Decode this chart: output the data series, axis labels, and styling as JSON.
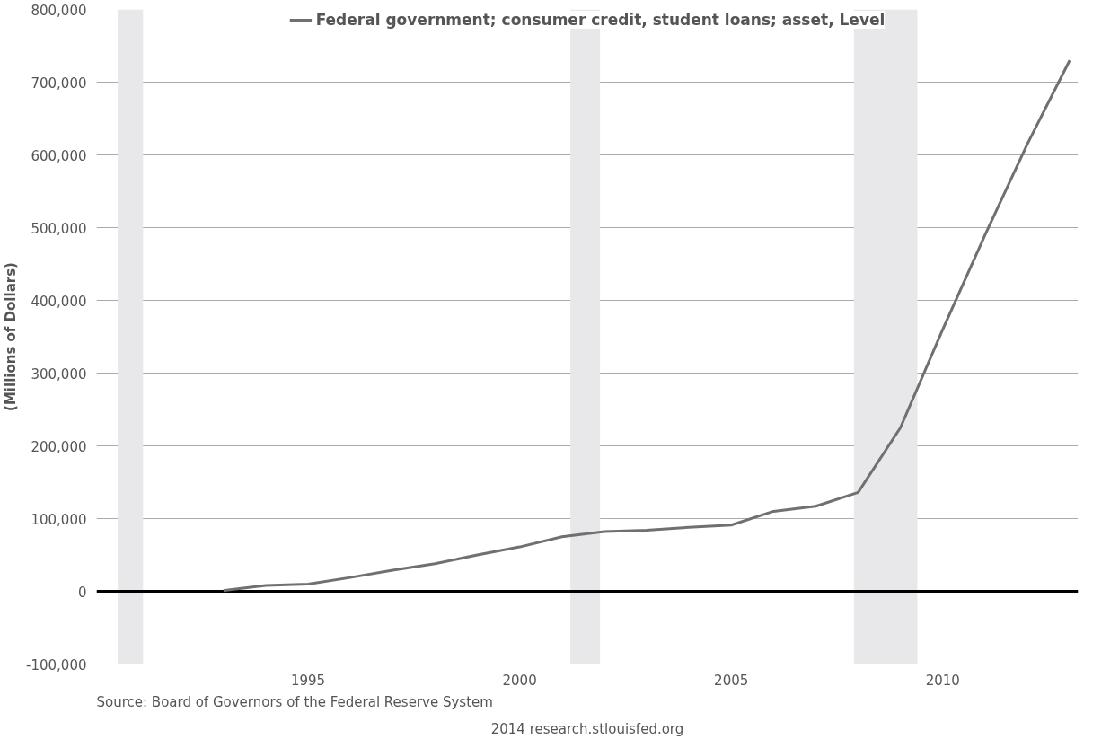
{
  "chart_data": {
    "type": "line",
    "ylabel": "(Millions of Dollars)",
    "x": [
      1993,
      1994,
      1995,
      1996,
      1997,
      1998,
      1999,
      2000,
      2001,
      2002,
      2003,
      2004,
      2005,
      2006,
      2007,
      2008,
      2009,
      2010,
      2011,
      2012,
      2013
    ],
    "series": [
      {
        "name": "Federal government; consumer credit, student loans; asset, Level",
        "color": "#707070",
        "values": [
          1000,
          8000,
          10000,
          19000,
          29000,
          38000,
          50000,
          61000,
          75000,
          82000,
          84000,
          88000,
          91000,
          110000,
          117000,
          136000,
          225000,
          360000,
          490000,
          615000,
          730000
        ]
      }
    ],
    "xlim": [
      1990,
      2013.2
    ],
    "xticks": [
      1995,
      2000,
      2005,
      2010
    ],
    "ylim": [
      -100000,
      800000
    ],
    "yticks": [
      {
        "value": -100000,
        "label": "-100,000"
      },
      {
        "value": 0,
        "label": "0"
      },
      {
        "value": 100000,
        "label": "100,000"
      },
      {
        "value": 200000,
        "label": "200,000"
      },
      {
        "value": 300000,
        "label": "300,000"
      },
      {
        "value": 400000,
        "label": "400,000"
      },
      {
        "value": 500000,
        "label": "500,000"
      },
      {
        "value": 600000,
        "label": "600,000"
      },
      {
        "value": 700000,
        "label": "700,000"
      },
      {
        "value": 800000,
        "label": "800,000"
      }
    ],
    "grid": "y",
    "legend": "top",
    "marker": "none",
    "line_style": "solid",
    "ref_lines": [
      {
        "axis": "y",
        "value": 0,
        "color": "#000000"
      }
    ],
    "bands": [
      {
        "axis": "x",
        "from": 1990.5,
        "to": 1991.1,
        "color": "#e8e8ea"
      },
      {
        "axis": "x",
        "from": 2001.2,
        "to": 2001.9,
        "color": "#e8e8ea"
      },
      {
        "axis": "x",
        "from": 2007.9,
        "to": 2009.4,
        "color": "#e8e8ea"
      }
    ],
    "annotations": [
      "Source: Board of Governors of the Federal Reserve System",
      "2014 research.stlouisfed.org"
    ]
  }
}
